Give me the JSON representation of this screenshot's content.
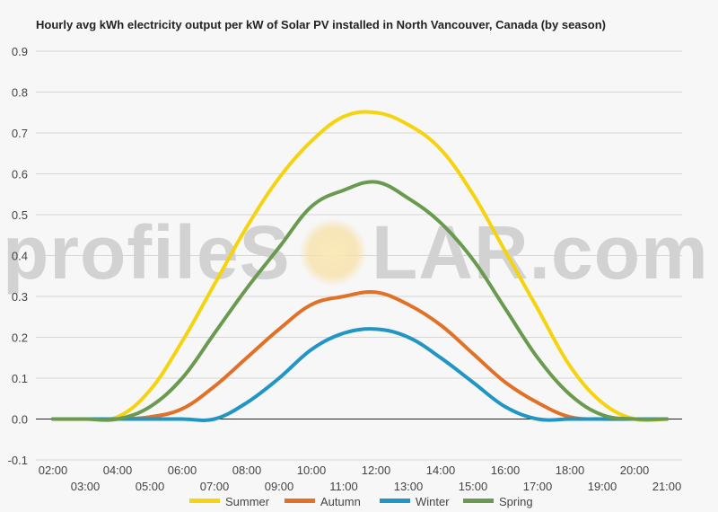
{
  "watermark": {
    "part1": "profileS",
    "part2": "LAR.com"
  },
  "chart_data": {
    "type": "line",
    "title": "Hourly avg kWh electricity output per kW of Solar PV installed in North Vancouver, Canada (by season)",
    "xlabel": "",
    "ylabel": "",
    "ylim": [
      -0.1,
      0.9
    ],
    "yticks": [
      "-0.1",
      "0.0",
      "0.1",
      "0.2",
      "0.3",
      "0.4",
      "0.5",
      "0.6",
      "0.7",
      "0.8",
      "0.9"
    ],
    "grid": true,
    "legend_position": "bottom",
    "x": [
      "02:00",
      "03:00",
      "04:00",
      "05:00",
      "06:00",
      "07:00",
      "08:00",
      "09:00",
      "10:00",
      "11:00",
      "12:00",
      "13:00",
      "14:00",
      "15:00",
      "16:00",
      "17:00",
      "18:00",
      "19:00",
      "20:00",
      "21:00"
    ],
    "series": [
      {
        "name": "Summer",
        "color": "#f5d30f",
        "values": [
          0,
          0,
          0.005,
          0.07,
          0.19,
          0.33,
          0.47,
          0.59,
          0.68,
          0.74,
          0.75,
          0.72,
          0.66,
          0.55,
          0.41,
          0.27,
          0.13,
          0.04,
          0,
          0
        ]
      },
      {
        "name": "Autumn",
        "color": "#e07127",
        "values": [
          0,
          0,
          0,
          0.005,
          0.025,
          0.08,
          0.15,
          0.22,
          0.28,
          0.3,
          0.31,
          0.28,
          0.23,
          0.16,
          0.09,
          0.04,
          0.005,
          0,
          0,
          0
        ]
      },
      {
        "name": "Winter",
        "color": "#2196c4",
        "values": [
          0,
          0,
          0,
          0,
          0,
          0,
          0.04,
          0.1,
          0.17,
          0.21,
          0.22,
          0.2,
          0.15,
          0.09,
          0.03,
          0,
          0,
          0,
          0,
          0
        ]
      },
      {
        "name": "Spring",
        "color": "#6a9a4f",
        "values": [
          0,
          0,
          0,
          0.03,
          0.1,
          0.21,
          0.32,
          0.42,
          0.52,
          0.56,
          0.58,
          0.54,
          0.48,
          0.39,
          0.27,
          0.15,
          0.06,
          0.01,
          0,
          0
        ]
      }
    ]
  }
}
